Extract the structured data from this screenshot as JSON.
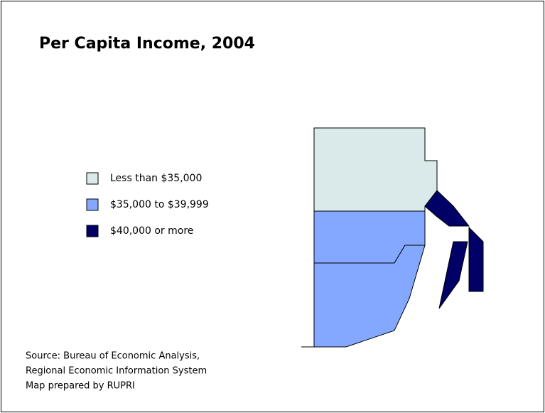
{
  "title": "Per Capita Income, 2004",
  "legend": [
    {
      "label": "Less than $35,000",
      "color": "#daeaea"
    },
    {
      "label": "$35,000 to $39,999",
      "color": "#84a8ff"
    },
    {
      "label": "$40,000 or more",
      "color": "#000066"
    }
  ],
  "source": [
    "Source: Bureau of Economic Analysis,",
    "Regional Economic Information System",
    "Map prepared by RUPRI"
  ]
}
